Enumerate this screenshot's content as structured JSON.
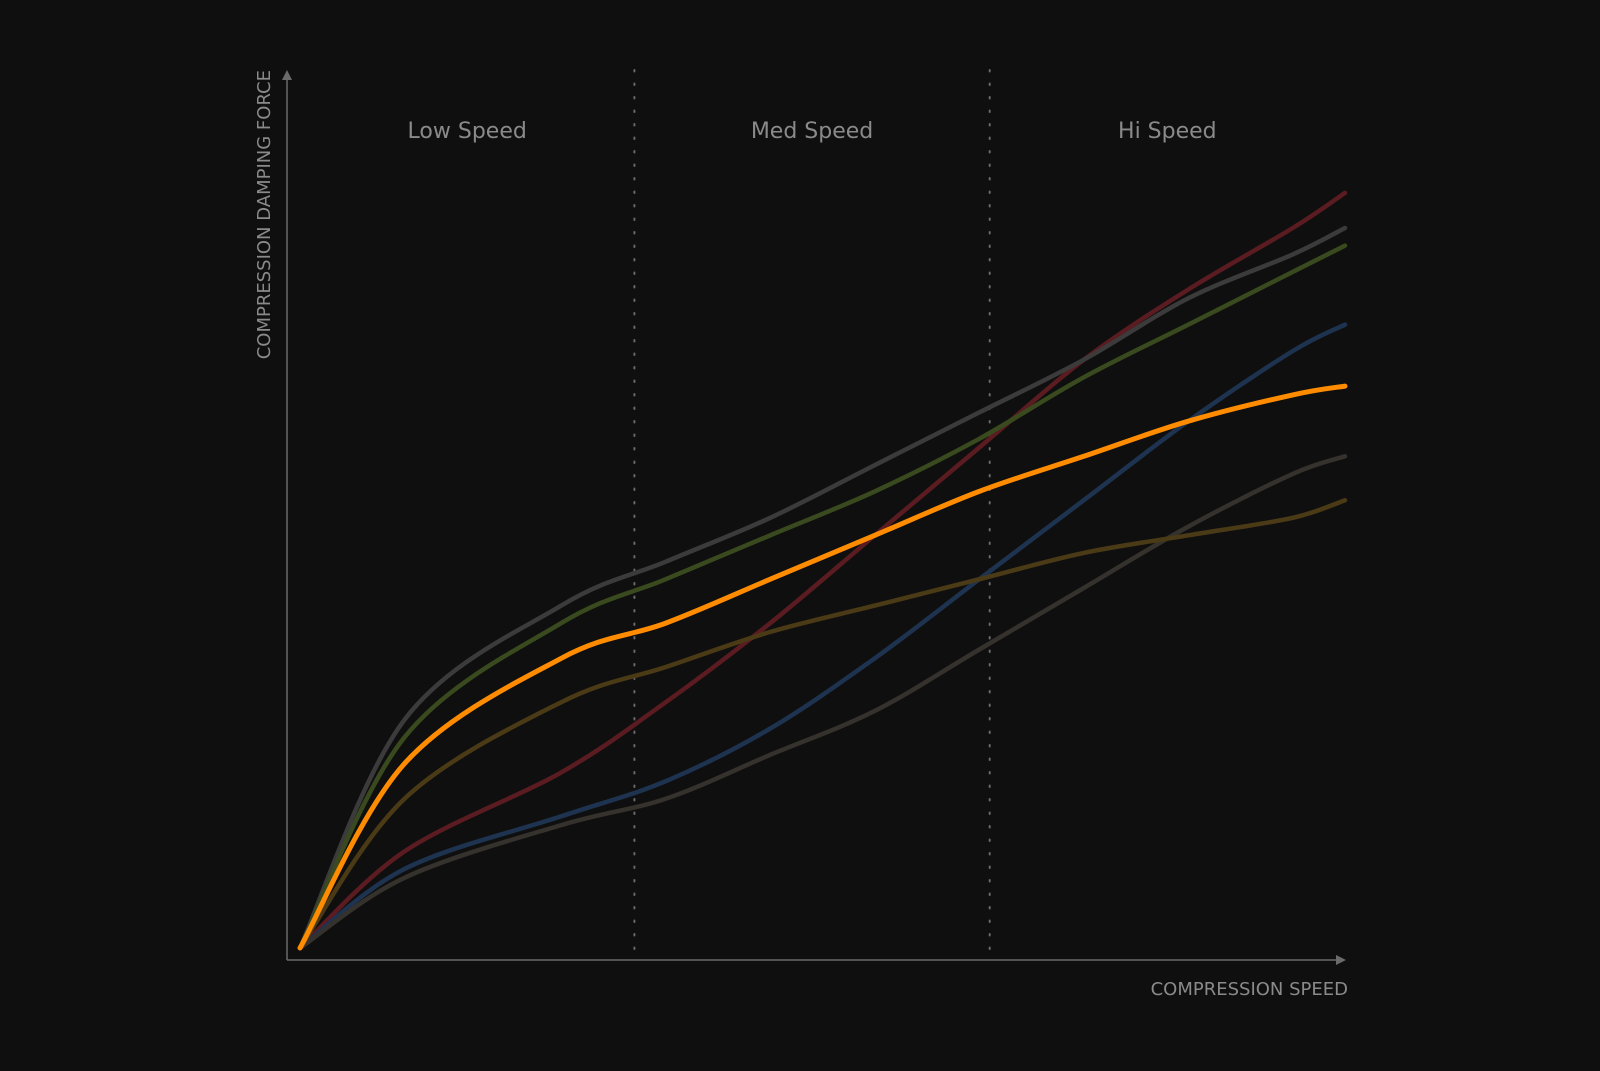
{
  "chart_data": {
    "type": "line",
    "title": "",
    "xlabel": "COMPRESSION SPEED",
    "ylabel": "COMPRESSION DAMPING FORCE",
    "x_ticks": false,
    "y_ticks": false,
    "grid": false,
    "legend": "none",
    "xlim": [
      0,
      1
    ],
    "ylim": [
      0,
      1
    ],
    "zones": [
      {
        "label": "Low Speed",
        "x_start": 0.0,
        "x_end": 0.32
      },
      {
        "label": "Med Speed",
        "x_start": 0.32,
        "x_end": 0.66
      },
      {
        "label": "Hi Speed",
        "x_start": 0.66,
        "x_end": 1.0
      }
    ],
    "series": [
      {
        "color": "#5a1b21",
        "x": [
          0,
          0.1,
          0.25,
          0.35,
          0.45,
          0.55,
          0.65,
          0.75,
          0.85,
          0.95,
          1.0
        ],
        "y": [
          0,
          0.11,
          0.2,
          0.28,
          0.37,
          0.47,
          0.57,
          0.67,
          0.75,
          0.82,
          0.86
        ]
      },
      {
        "color": "#3b3b3b",
        "x": [
          0,
          0.1,
          0.25,
          0.35,
          0.45,
          0.55,
          0.65,
          0.75,
          0.85,
          0.95,
          1.0
        ],
        "y": [
          0,
          0.26,
          0.39,
          0.44,
          0.49,
          0.55,
          0.61,
          0.67,
          0.74,
          0.79,
          0.82
        ]
      },
      {
        "color": "#3a4a1f",
        "x": [
          0,
          0.1,
          0.25,
          0.35,
          0.45,
          0.55,
          0.65,
          0.75,
          0.85,
          0.95,
          1.0
        ],
        "y": [
          0,
          0.24,
          0.37,
          0.42,
          0.47,
          0.52,
          0.58,
          0.65,
          0.71,
          0.77,
          0.8
        ]
      },
      {
        "color": "#1e3350",
        "x": [
          0,
          0.1,
          0.25,
          0.35,
          0.45,
          0.55,
          0.65,
          0.75,
          0.85,
          0.95,
          1.0
        ],
        "y": [
          0,
          0.09,
          0.15,
          0.19,
          0.25,
          0.33,
          0.42,
          0.51,
          0.6,
          0.68,
          0.71
        ]
      },
      {
        "color": "#ff8c00",
        "x": [
          0,
          0.1,
          0.25,
          0.35,
          0.45,
          0.55,
          0.65,
          0.75,
          0.85,
          0.95,
          1.0
        ],
        "y": [
          0,
          0.21,
          0.33,
          0.37,
          0.42,
          0.47,
          0.52,
          0.56,
          0.6,
          0.63,
          0.64
        ]
      },
      {
        "color": "#35312c",
        "x": [
          0,
          0.1,
          0.25,
          0.35,
          0.45,
          0.55,
          0.65,
          0.75,
          0.85,
          0.95,
          1.0
        ],
        "y": [
          0,
          0.08,
          0.14,
          0.17,
          0.22,
          0.27,
          0.34,
          0.41,
          0.48,
          0.54,
          0.56
        ]
      },
      {
        "color": "#4a3a16",
        "x": [
          0,
          0.1,
          0.25,
          0.35,
          0.45,
          0.55,
          0.65,
          0.75,
          0.85,
          0.95,
          1.0
        ],
        "y": [
          0,
          0.17,
          0.28,
          0.32,
          0.36,
          0.39,
          0.42,
          0.45,
          0.47,
          0.49,
          0.51
        ]
      }
    ]
  }
}
